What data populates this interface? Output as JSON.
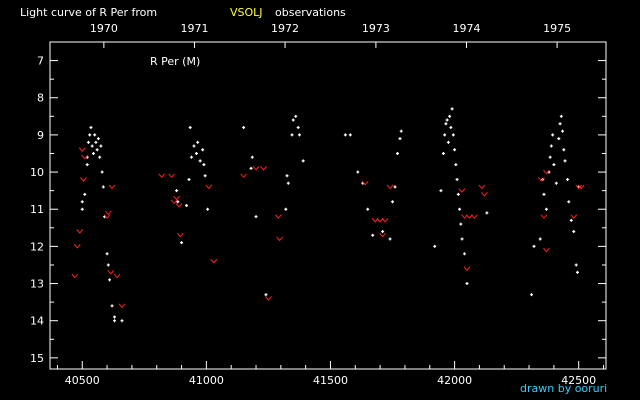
{
  "header": {
    "prefix": "Light curve of R Per from",
    "source": "VSOLJ",
    "suffix": "observations"
  },
  "credit": "drawn by ooruri",
  "colors": {
    "background": "#000000",
    "axis": "#ffffff",
    "text": "#ffffff",
    "source_text": "#ffff33",
    "observation": "#ffffff",
    "fainter_than": "#ff2020",
    "credit_text": "#33ccff"
  },
  "chart_data": {
    "type": "scatter",
    "title": "R Per (M)",
    "xlim": [
      40370,
      42610
    ],
    "ylim": [
      15.3,
      6.5
    ],
    "y_inverted": true,
    "x_ticks": [
      40500,
      41000,
      41500,
      42000,
      42500
    ],
    "x_tick_labels": [
      "40500",
      "41000",
      "41500",
      "42000",
      "42500"
    ],
    "y_ticks": [
      7,
      8,
      9,
      10,
      11,
      12,
      13,
      14,
      15
    ],
    "y_tick_labels": [
      "7",
      "8",
      "9",
      "10",
      "11",
      "12",
      "13",
      "14",
      "15"
    ],
    "top_axis": {
      "years": [
        {
          "label": "1970",
          "x": 40587
        },
        {
          "label": "1971",
          "x": 40952
        },
        {
          "label": "1972",
          "x": 41317
        },
        {
          "label": "1973",
          "x": 41683
        },
        {
          "label": "1974",
          "x": 42048
        },
        {
          "label": "1975",
          "x": 42413
        }
      ]
    },
    "grid": false,
    "series": [
      {
        "marker": "dot",
        "points": [
          [
            40500,
            11.0
          ],
          [
            40500,
            10.8
          ],
          [
            40510,
            10.6
          ],
          [
            40520,
            9.8
          ],
          [
            40520,
            9.6
          ],
          [
            40525,
            9.2
          ],
          [
            40530,
            9.0
          ],
          [
            40535,
            8.8
          ],
          [
            40540,
            9.3
          ],
          [
            40545,
            9.5
          ],
          [
            40550,
            9.0
          ],
          [
            40555,
            9.2
          ],
          [
            40560,
            9.4
          ],
          [
            40565,
            9.1
          ],
          [
            40570,
            9.6
          ],
          [
            40575,
            9.3
          ],
          [
            40580,
            10.0
          ],
          [
            40585,
            10.4
          ],
          [
            40590,
            11.2
          ],
          [
            40600,
            12.2
          ],
          [
            40605,
            12.5
          ],
          [
            40610,
            12.9
          ],
          [
            40620,
            13.6
          ],
          [
            40630,
            13.9
          ],
          [
            40630,
            14.0
          ],
          [
            40660,
            14.0
          ],
          [
            40880,
            10.5
          ],
          [
            40885,
            10.8
          ],
          [
            40900,
            11.9
          ],
          [
            40920,
            10.9
          ],
          [
            40930,
            10.2
          ],
          [
            40935,
            8.8
          ],
          [
            40940,
            9.6
          ],
          [
            40950,
            9.3
          ],
          [
            40960,
            9.5
          ],
          [
            40965,
            9.2
          ],
          [
            40975,
            9.7
          ],
          [
            40985,
            9.4
          ],
          [
            40990,
            9.8
          ],
          [
            40995,
            10.1
          ],
          [
            41005,
            11.0
          ],
          [
            41150,
            8.8
          ],
          [
            41180,
            9.9
          ],
          [
            41185,
            9.6
          ],
          [
            41200,
            11.2
          ],
          [
            41240,
            13.3
          ],
          [
            41320,
            11.0
          ],
          [
            41325,
            10.1
          ],
          [
            41330,
            10.3
          ],
          [
            41345,
            9.0
          ],
          [
            41350,
            8.6
          ],
          [
            41360,
            8.5
          ],
          [
            41370,
            8.8
          ],
          [
            41375,
            9.0
          ],
          [
            41390,
            9.7
          ],
          [
            41560,
            9.0
          ],
          [
            41580,
            9.0
          ],
          [
            41610,
            10.0
          ],
          [
            41630,
            10.3
          ],
          [
            41650,
            11.0
          ],
          [
            41670,
            11.7
          ],
          [
            41710,
            11.6
          ],
          [
            41740,
            11.8
          ],
          [
            41750,
            10.8
          ],
          [
            41760,
            10.4
          ],
          [
            41770,
            9.5
          ],
          [
            41780,
            9.1
          ],
          [
            41785,
            8.9
          ],
          [
            41920,
            12.0
          ],
          [
            41945,
            10.5
          ],
          [
            41955,
            9.5
          ],
          [
            41960,
            9.0
          ],
          [
            41965,
            8.7
          ],
          [
            41970,
            8.6
          ],
          [
            41975,
            9.2
          ],
          [
            41980,
            8.5
          ],
          [
            41985,
            8.8
          ],
          [
            41990,
            8.3
          ],
          [
            41995,
            9.0
          ],
          [
            42000,
            9.4
          ],
          [
            42005,
            9.8
          ],
          [
            42010,
            10.2
          ],
          [
            42015,
            10.6
          ],
          [
            42020,
            11.0
          ],
          [
            42025,
            11.4
          ],
          [
            42030,
            11.8
          ],
          [
            42040,
            12.2
          ],
          [
            42050,
            13.0
          ],
          [
            42130,
            11.1
          ],
          [
            42310,
            13.3
          ],
          [
            42320,
            12.0
          ],
          [
            42345,
            11.8
          ],
          [
            42355,
            10.2
          ],
          [
            42360,
            10.6
          ],
          [
            42370,
            11.0
          ],
          [
            42380,
            10.0
          ],
          [
            42385,
            9.6
          ],
          [
            42390,
            9.3
          ],
          [
            42395,
            9.0
          ],
          [
            42400,
            9.8
          ],
          [
            42410,
            10.3
          ],
          [
            42420,
            9.1
          ],
          [
            42425,
            8.7
          ],
          [
            42430,
            8.5
          ],
          [
            42435,
            8.9
          ],
          [
            42440,
            9.4
          ],
          [
            42445,
            9.7
          ],
          [
            42455,
            10.2
          ],
          [
            42460,
            10.8
          ],
          [
            42470,
            11.3
          ],
          [
            42480,
            11.6
          ],
          [
            42490,
            12.5
          ],
          [
            42495,
            12.7
          ],
          [
            42500,
            10.4
          ]
        ]
      },
      {
        "marker": "fainter-than",
        "points": [
          [
            40470,
            12.8
          ],
          [
            40480,
            12.0
          ],
          [
            40490,
            11.6
          ],
          [
            40500,
            9.4
          ],
          [
            40505,
            10.2
          ],
          [
            40510,
            9.6
          ],
          [
            40600,
            11.2
          ],
          [
            40605,
            11.1
          ],
          [
            40615,
            12.7
          ],
          [
            40620,
            10.4
          ],
          [
            40640,
            12.8
          ],
          [
            40660,
            13.6
          ],
          [
            40820,
            10.1
          ],
          [
            40860,
            10.1
          ],
          [
            40870,
            10.8
          ],
          [
            40880,
            10.7
          ],
          [
            40890,
            10.9
          ],
          [
            40895,
            11.7
          ],
          [
            41010,
            10.4
          ],
          [
            41030,
            12.4
          ],
          [
            41150,
            10.1
          ],
          [
            41200,
            9.9
          ],
          [
            41230,
            9.9
          ],
          [
            41250,
            13.4
          ],
          [
            41290,
            11.2
          ],
          [
            41295,
            11.8
          ],
          [
            41640,
            10.3
          ],
          [
            41680,
            11.3
          ],
          [
            41700,
            11.3
          ],
          [
            41710,
            11.7
          ],
          [
            41720,
            11.3
          ],
          [
            41740,
            10.4
          ],
          [
            42030,
            10.5
          ],
          [
            42040,
            11.2
          ],
          [
            42050,
            12.6
          ],
          [
            42060,
            11.2
          ],
          [
            42080,
            11.2
          ],
          [
            42110,
            10.4
          ],
          [
            42120,
            10.6
          ],
          [
            42350,
            10.2
          ],
          [
            42370,
            10.0
          ],
          [
            42360,
            11.2
          ],
          [
            42370,
            12.1
          ],
          [
            42480,
            11.2
          ],
          [
            42500,
            10.4
          ],
          [
            42510,
            10.4
          ]
        ]
      }
    ]
  }
}
